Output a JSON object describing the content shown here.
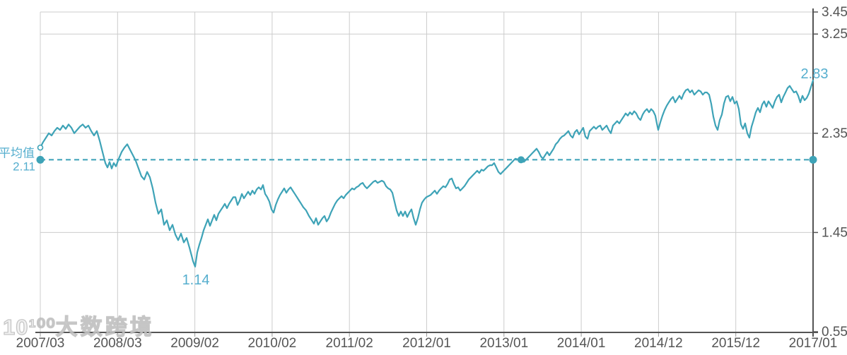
{
  "watermark": {
    "logo": "10¹⁰⁰",
    "brand": "大数跨境"
  },
  "chart_data": {
    "type": "line",
    "title": "",
    "legend": [],
    "grid": true,
    "y_axis_side": "right",
    "ylim": [
      0.55,
      3.45
    ],
    "y_ticks": [
      0.55,
      1.45,
      2.35,
      3.25,
      3.45
    ],
    "x_tick_labels": [
      "2007/03",
      "2008/03",
      "2009/02",
      "2010/02",
      "2011/02",
      "2012/01",
      "2013/01",
      "2014/01",
      "2014/12",
      "2015/12",
      "2017/01"
    ],
    "average": {
      "label": "平均值",
      "value_label": "2.11",
      "value": 2.11
    },
    "annotations": {
      "min": {
        "text": "1.14",
        "t": 0.2004,
        "value": 1.14
      },
      "end": {
        "text": "2.83",
        "t": 1.0,
        "value": 2.83
      },
      "start_marker": {
        "t": 0.0,
        "value": 2.22,
        "style": "open"
      },
      "cross_marker": {
        "t": 0.6221,
        "value": 2.11,
        "style": "filled"
      }
    },
    "colors": {
      "line": "#3EA3B7",
      "annotation": "#55AECE",
      "average_line": "#45A5BB",
      "axis": "#555555",
      "grid": "#CCCCCC",
      "tick": "#999999",
      "background": "#FFFFFF"
    },
    "points": [
      [
        0.0,
        2.22
      ],
      [
        0.0037,
        2.27
      ],
      [
        0.0073,
        2.31
      ],
      [
        0.011,
        2.35
      ],
      [
        0.0146,
        2.33
      ],
      [
        0.0183,
        2.37
      ],
      [
        0.022,
        2.4
      ],
      [
        0.0256,
        2.38
      ],
      [
        0.0293,
        2.42
      ],
      [
        0.0329,
        2.39
      ],
      [
        0.0366,
        2.43
      ],
      [
        0.0403,
        2.4
      ],
      [
        0.0439,
        2.35
      ],
      [
        0.0476,
        2.38
      ],
      [
        0.0512,
        2.41
      ],
      [
        0.0549,
        2.43
      ],
      [
        0.0586,
        2.4
      ],
      [
        0.0622,
        2.42
      ],
      [
        0.0659,
        2.37
      ],
      [
        0.0695,
        2.33
      ],
      [
        0.0732,
        2.37
      ],
      [
        0.0769,
        2.28
      ],
      [
        0.0805,
        2.18
      ],
      [
        0.0842,
        2.08
      ],
      [
        0.0869,
        2.04
      ],
      [
        0.0897,
        2.09
      ],
      [
        0.0924,
        2.03
      ],
      [
        0.0951,
        2.08
      ],
      [
        0.0979,
        2.05
      ],
      [
        0.1016,
        2.12
      ],
      [
        0.1052,
        2.18
      ],
      [
        0.1089,
        2.22
      ],
      [
        0.1125,
        2.25
      ],
      [
        0.1162,
        2.2
      ],
      [
        0.1199,
        2.15
      ],
      [
        0.1235,
        2.1
      ],
      [
        0.1272,
        2.03
      ],
      [
        0.1308,
        1.96
      ],
      [
        0.1345,
        1.93
      ],
      [
        0.1382,
        2.0
      ],
      [
        0.1418,
        1.95
      ],
      [
        0.1455,
        1.85
      ],
      [
        0.1491,
        1.72
      ],
      [
        0.1528,
        1.62
      ],
      [
        0.1565,
        1.66
      ],
      [
        0.1601,
        1.52
      ],
      [
        0.1638,
        1.56
      ],
      [
        0.1674,
        1.47
      ],
      [
        0.1711,
        1.52
      ],
      [
        0.1748,
        1.43
      ],
      [
        0.1784,
        1.38
      ],
      [
        0.1821,
        1.44
      ],
      [
        0.1857,
        1.36
      ],
      [
        0.1894,
        1.4
      ],
      [
        0.1931,
        1.31
      ],
      [
        0.1958,
        1.24
      ],
      [
        0.1976,
        1.19
      ],
      [
        0.2004,
        1.14
      ],
      [
        0.2031,
        1.27
      ],
      [
        0.2059,
        1.34
      ],
      [
        0.2086,
        1.4
      ],
      [
        0.2113,
        1.47
      ],
      [
        0.2141,
        1.52
      ],
      [
        0.2168,
        1.57
      ],
      [
        0.2196,
        1.51
      ],
      [
        0.2223,
        1.56
      ],
      [
        0.2251,
        1.61
      ],
      [
        0.2278,
        1.56
      ],
      [
        0.2306,
        1.62
      ],
      [
        0.2333,
        1.65
      ],
      [
        0.2361,
        1.68
      ],
      [
        0.2388,
        1.71
      ],
      [
        0.2415,
        1.67
      ],
      [
        0.2443,
        1.71
      ],
      [
        0.247,
        1.74
      ],
      [
        0.2498,
        1.77
      ],
      [
        0.2525,
        1.77
      ],
      [
        0.2553,
        1.7
      ],
      [
        0.258,
        1.74
      ],
      [
        0.2608,
        1.8
      ],
      [
        0.2635,
        1.76
      ],
      [
        0.2662,
        1.79
      ],
      [
        0.269,
        1.82
      ],
      [
        0.2717,
        1.79
      ],
      [
        0.2745,
        1.83
      ],
      [
        0.2772,
        1.8
      ],
      [
        0.28,
        1.84
      ],
      [
        0.2827,
        1.86
      ],
      [
        0.2855,
        1.84
      ],
      [
        0.2882,
        1.88
      ],
      [
        0.2909,
        1.8
      ],
      [
        0.2937,
        1.77
      ],
      [
        0.2964,
        1.73
      ],
      [
        0.2992,
        1.66
      ],
      [
        0.3019,
        1.63
      ],
      [
        0.3047,
        1.7
      ],
      [
        0.3074,
        1.75
      ],
      [
        0.3102,
        1.79
      ],
      [
        0.3129,
        1.82
      ],
      [
        0.3156,
        1.85
      ],
      [
        0.3184,
        1.81
      ],
      [
        0.3211,
        1.84
      ],
      [
        0.3239,
        1.86
      ],
      [
        0.3266,
        1.83
      ],
      [
        0.3294,
        1.8
      ],
      [
        0.3321,
        1.77
      ],
      [
        0.3349,
        1.74
      ],
      [
        0.3376,
        1.71
      ],
      [
        0.3403,
        1.68
      ],
      [
        0.344,
        1.65
      ],
      [
        0.3477,
        1.6
      ],
      [
        0.3513,
        1.56
      ],
      [
        0.3541,
        1.53
      ],
      [
        0.3568,
        1.58
      ],
      [
        0.3596,
        1.52
      ],
      [
        0.3623,
        1.55
      ],
      [
        0.3651,
        1.58
      ],
      [
        0.3678,
        1.6
      ],
      [
        0.3705,
        1.55
      ],
      [
        0.3733,
        1.58
      ],
      [
        0.376,
        1.63
      ],
      [
        0.3788,
        1.67
      ],
      [
        0.3815,
        1.71
      ],
      [
        0.3843,
        1.74
      ],
      [
        0.387,
        1.76
      ],
      [
        0.3898,
        1.78
      ],
      [
        0.3925,
        1.76
      ],
      [
        0.3952,
        1.79
      ],
      [
        0.398,
        1.81
      ],
      [
        0.4007,
        1.83
      ],
      [
        0.4035,
        1.85
      ],
      [
        0.4062,
        1.84
      ],
      [
        0.409,
        1.86
      ],
      [
        0.4117,
        1.87
      ],
      [
        0.4144,
        1.89
      ],
      [
        0.4172,
        1.9
      ],
      [
        0.4199,
        1.87
      ],
      [
        0.4227,
        1.85
      ],
      [
        0.4254,
        1.87
      ],
      [
        0.4282,
        1.89
      ],
      [
        0.4309,
        1.91
      ],
      [
        0.4337,
        1.92
      ],
      [
        0.4364,
        1.9
      ],
      [
        0.4391,
        1.91
      ],
      [
        0.4419,
        1.92
      ],
      [
        0.4446,
        1.91
      ],
      [
        0.4474,
        1.87
      ],
      [
        0.4501,
        1.85
      ],
      [
        0.4529,
        1.84
      ],
      [
        0.4556,
        1.81
      ],
      [
        0.4584,
        1.73
      ],
      [
        0.4611,
        1.65
      ],
      [
        0.4639,
        1.6
      ],
      [
        0.4666,
        1.64
      ],
      [
        0.4693,
        1.6
      ],
      [
        0.4721,
        1.64
      ],
      [
        0.4748,
        1.59
      ],
      [
        0.4776,
        1.63
      ],
      [
        0.4803,
        1.66
      ],
      [
        0.4831,
        1.58
      ],
      [
        0.4858,
        1.52
      ],
      [
        0.4886,
        1.58
      ],
      [
        0.4913,
        1.66
      ],
      [
        0.494,
        1.72
      ],
      [
        0.4968,
        1.75
      ],
      [
        0.4995,
        1.77
      ],
      [
        0.5023,
        1.78
      ],
      [
        0.505,
        1.79
      ],
      [
        0.5078,
        1.81
      ],
      [
        0.5105,
        1.83
      ],
      [
        0.5133,
        1.8
      ],
      [
        0.516,
        1.83
      ],
      [
        0.5187,
        1.85
      ],
      [
        0.5215,
        1.87
      ],
      [
        0.5242,
        1.86
      ],
      [
        0.527,
        1.89
      ],
      [
        0.5297,
        1.93
      ],
      [
        0.5325,
        1.94
      ],
      [
        0.5352,
        1.89
      ],
      [
        0.538,
        1.85
      ],
      [
        0.5407,
        1.86
      ],
      [
        0.5434,
        1.83
      ],
      [
        0.5462,
        1.85
      ],
      [
        0.5489,
        1.87
      ],
      [
        0.5517,
        1.9
      ],
      [
        0.5544,
        1.93
      ],
      [
        0.5572,
        1.95
      ],
      [
        0.5599,
        1.97
      ],
      [
        0.5627,
        1.99
      ],
      [
        0.5654,
        2.01
      ],
      [
        0.5681,
        1.99
      ],
      [
        0.5709,
        2.02
      ],
      [
        0.5736,
        2.01
      ],
      [
        0.5764,
        2.03
      ],
      [
        0.5791,
        2.05
      ],
      [
        0.5819,
        2.06
      ],
      [
        0.5846,
        2.06
      ],
      [
        0.5873,
        2.08
      ],
      [
        0.5901,
        2.04
      ],
      [
        0.5928,
        2.0
      ],
      [
        0.5956,
        1.98
      ],
      [
        0.5983,
        2.0
      ],
      [
        0.6011,
        2.02
      ],
      [
        0.6038,
        2.04
      ],
      [
        0.6066,
        2.06
      ],
      [
        0.6093,
        2.08
      ],
      [
        0.612,
        2.1
      ],
      [
        0.6148,
        2.12
      ],
      [
        0.6185,
        2.11
      ],
      [
        0.6221,
        2.11
      ],
      [
        0.6258,
        2.09
      ],
      [
        0.6285,
        2.11
      ],
      [
        0.6313,
        2.13
      ],
      [
        0.634,
        2.15
      ],
      [
        0.6368,
        2.17
      ],
      [
        0.6395,
        2.19
      ],
      [
        0.6423,
        2.21
      ],
      [
        0.645,
        2.18
      ],
      [
        0.6478,
        2.14
      ],
      [
        0.6505,
        2.12
      ],
      [
        0.6532,
        2.15
      ],
      [
        0.656,
        2.18
      ],
      [
        0.6587,
        2.15
      ],
      [
        0.6615,
        2.18
      ],
      [
        0.6642,
        2.21
      ],
      [
        0.667,
        2.25
      ],
      [
        0.6697,
        2.27
      ],
      [
        0.6725,
        2.3
      ],
      [
        0.6752,
        2.32
      ],
      [
        0.6779,
        2.33
      ],
      [
        0.6807,
        2.35
      ],
      [
        0.6834,
        2.37
      ],
      [
        0.6862,
        2.33
      ],
      [
        0.6889,
        2.31
      ],
      [
        0.6917,
        2.36
      ],
      [
        0.6944,
        2.38
      ],
      [
        0.6972,
        2.34
      ],
      [
        0.6999,
        2.37
      ],
      [
        0.7026,
        2.4
      ],
      [
        0.7054,
        2.32
      ],
      [
        0.7081,
        2.3
      ],
      [
        0.7109,
        2.37
      ],
      [
        0.7136,
        2.39
      ],
      [
        0.7164,
        2.41
      ],
      [
        0.7191,
        2.39
      ],
      [
        0.7218,
        2.41
      ],
      [
        0.7246,
        2.42
      ],
      [
        0.7273,
        2.38
      ],
      [
        0.7301,
        2.4
      ],
      [
        0.7328,
        2.42
      ],
      [
        0.7356,
        2.38
      ],
      [
        0.7383,
        2.35
      ],
      [
        0.7411,
        2.42
      ],
      [
        0.7438,
        2.44
      ],
      [
        0.7465,
        2.46
      ],
      [
        0.7493,
        2.44
      ],
      [
        0.752,
        2.47
      ],
      [
        0.7548,
        2.5
      ],
      [
        0.7575,
        2.53
      ],
      [
        0.7603,
        2.51
      ],
      [
        0.763,
        2.54
      ],
      [
        0.7658,
        2.52
      ],
      [
        0.7685,
        2.55
      ],
      [
        0.7712,
        2.53
      ],
      [
        0.774,
        2.49
      ],
      [
        0.7767,
        2.47
      ],
      [
        0.7795,
        2.52
      ],
      [
        0.7822,
        2.55
      ],
      [
        0.785,
        2.57
      ],
      [
        0.7877,
        2.54
      ],
      [
        0.7905,
        2.57
      ],
      [
        0.7932,
        2.55
      ],
      [
        0.7959,
        2.51
      ],
      [
        0.7978,
        2.44
      ],
      [
        0.7996,
        2.38
      ],
      [
        0.8024,
        2.45
      ],
      [
        0.8051,
        2.51
      ],
      [
        0.8079,
        2.56
      ],
      [
        0.8106,
        2.6
      ],
      [
        0.8133,
        2.63
      ],
      [
        0.8161,
        2.66
      ],
      [
        0.8188,
        2.68
      ],
      [
        0.8216,
        2.63
      ],
      [
        0.8243,
        2.66
      ],
      [
        0.8271,
        2.69
      ],
      [
        0.8298,
        2.66
      ],
      [
        0.8326,
        2.71
      ],
      [
        0.8353,
        2.74
      ],
      [
        0.838,
        2.75
      ],
      [
        0.8408,
        2.72
      ],
      [
        0.8435,
        2.74
      ],
      [
        0.8463,
        2.7
      ],
      [
        0.849,
        2.72
      ],
      [
        0.8518,
        2.74
      ],
      [
        0.8545,
        2.73
      ],
      [
        0.8573,
        2.7
      ],
      [
        0.86,
        2.72
      ],
      [
        0.8627,
        2.72
      ],
      [
        0.8655,
        2.7
      ],
      [
        0.8682,
        2.62
      ],
      [
        0.871,
        2.5
      ],
      [
        0.8737,
        2.42
      ],
      [
        0.8765,
        2.38
      ],
      [
        0.8792,
        2.47
      ],
      [
        0.882,
        2.52
      ],
      [
        0.8847,
        2.62
      ],
      [
        0.8874,
        2.68
      ],
      [
        0.8902,
        2.69
      ],
      [
        0.8929,
        2.64
      ],
      [
        0.8957,
        2.68
      ],
      [
        0.8984,
        2.62
      ],
      [
        0.9012,
        2.64
      ],
      [
        0.9039,
        2.57
      ],
      [
        0.9067,
        2.43
      ],
      [
        0.9094,
        2.39
      ],
      [
        0.9121,
        2.44
      ],
      [
        0.9149,
        2.35
      ],
      [
        0.9176,
        2.31
      ],
      [
        0.9204,
        2.41
      ],
      [
        0.9231,
        2.47
      ],
      [
        0.9259,
        2.54
      ],
      [
        0.9286,
        2.58
      ],
      [
        0.9314,
        2.54
      ],
      [
        0.9341,
        2.61
      ],
      [
        0.9368,
        2.64
      ],
      [
        0.9396,
        2.59
      ],
      [
        0.9423,
        2.64
      ],
      [
        0.9451,
        2.61
      ],
      [
        0.9478,
        2.58
      ],
      [
        0.9506,
        2.64
      ],
      [
        0.9533,
        2.68
      ],
      [
        0.9561,
        2.7
      ],
      [
        0.9588,
        2.63
      ],
      [
        0.9615,
        2.68
      ],
      [
        0.9643,
        2.72
      ],
      [
        0.967,
        2.76
      ],
      [
        0.9698,
        2.78
      ],
      [
        0.9725,
        2.75
      ],
      [
        0.9753,
        2.72
      ],
      [
        0.978,
        2.73
      ],
      [
        0.9808,
        2.69
      ],
      [
        0.9835,
        2.63
      ],
      [
        0.9863,
        2.69
      ],
      [
        0.989,
        2.65
      ],
      [
        0.9918,
        2.67
      ],
      [
        0.9945,
        2.71
      ],
      [
        0.9973,
        2.77
      ],
      [
        1.0,
        2.83
      ]
    ]
  }
}
